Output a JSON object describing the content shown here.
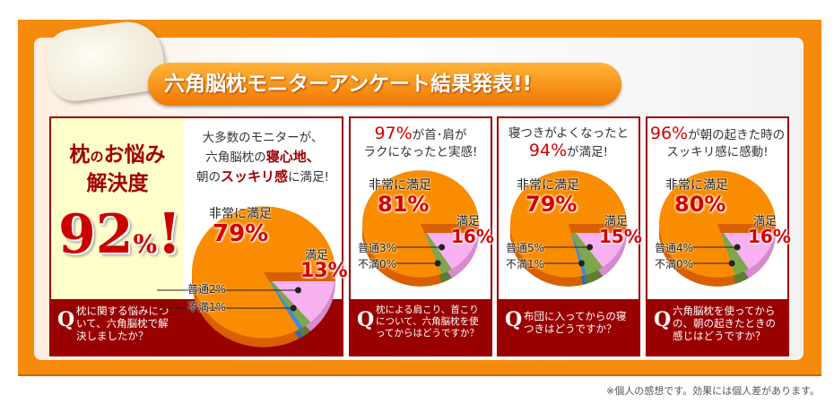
{
  "title": "六角脳枕モニターアンケート結果発表!!",
  "footer": "※個人の感想です。効果には個人差があります。",
  "hero": {
    "line1a": "枕",
    "line1b": "の",
    "line1c": "お悩み",
    "line2": "解決度",
    "value": "92",
    "unit": "%",
    "bang": "!"
  },
  "colors": {
    "very": "#f98c00",
    "sat": "#f7b0f0",
    "normal": "#7ea64a",
    "dissat": "#3a8be8",
    "band": "#990000",
    "frame": "#f68a0c"
  },
  "chart_data": [
    {
      "type": "pie",
      "head": [
        "大多数のモニターが、",
        "六角脳枕の",
        "寝心地、",
        "朝の",
        "スッキリ感",
        "に満足!"
      ],
      "q": "枕に関する悩みについて、六角脳枕で解決しましたか？",
      "q_mark": "Q",
      "slices": [
        {
          "name": "満足",
          "value": 13,
          "label": "13%"
        },
        {
          "name": "普通",
          "value": 2,
          "label": "普通2%"
        },
        {
          "name": "不満",
          "value": 1,
          "label": "不満1%"
        },
        {
          "name": "非常に満足",
          "value": 79,
          "label": "79%"
        }
      ]
    },
    {
      "type": "pie",
      "head": [
        "97%",
        "が首･肩が",
        "ラクになったと実感!"
      ],
      "q": "枕による肩こり、首こりについて、六角脳枕を使ってからはどうですか？",
      "q_mark": "Q",
      "slices": [
        {
          "name": "満足",
          "value": 16,
          "label": "16%"
        },
        {
          "name": "普通",
          "value": 3,
          "label": "普通3%"
        },
        {
          "name": "不満",
          "value": 0,
          "label": "不満0%"
        },
        {
          "name": "非常に満足",
          "value": 81,
          "label": "81%"
        }
      ]
    },
    {
      "type": "pie",
      "head": [
        "寝つきがよくなったと",
        "94%",
        "が満足!"
      ],
      "q": "布団に入ってからの寝つきはどうですか？",
      "q_mark": "Q",
      "slices": [
        {
          "name": "満足",
          "value": 15,
          "label": "15%"
        },
        {
          "name": "普通",
          "value": 5,
          "label": "普通5%"
        },
        {
          "name": "不満",
          "value": 1,
          "label": "不満1%"
        },
        {
          "name": "非常に満足",
          "value": 79,
          "label": "79%"
        }
      ]
    },
    {
      "type": "pie",
      "head": [
        "96%",
        "が朝の起きた時の",
        "スッキリ感に感動!"
      ],
      "q": "六角脳枕を使ってからの、朝の起きたときの感じはどうですか？",
      "q_mark": "Q",
      "slices": [
        {
          "name": "満足",
          "value": 16,
          "label": "16%"
        },
        {
          "name": "普通",
          "value": 4,
          "label": "普通4%"
        },
        {
          "name": "不満",
          "value": 0,
          "label": "不満0%"
        },
        {
          "name": "非常に満足",
          "value": 80,
          "label": "80%"
        }
      ]
    }
  ]
}
